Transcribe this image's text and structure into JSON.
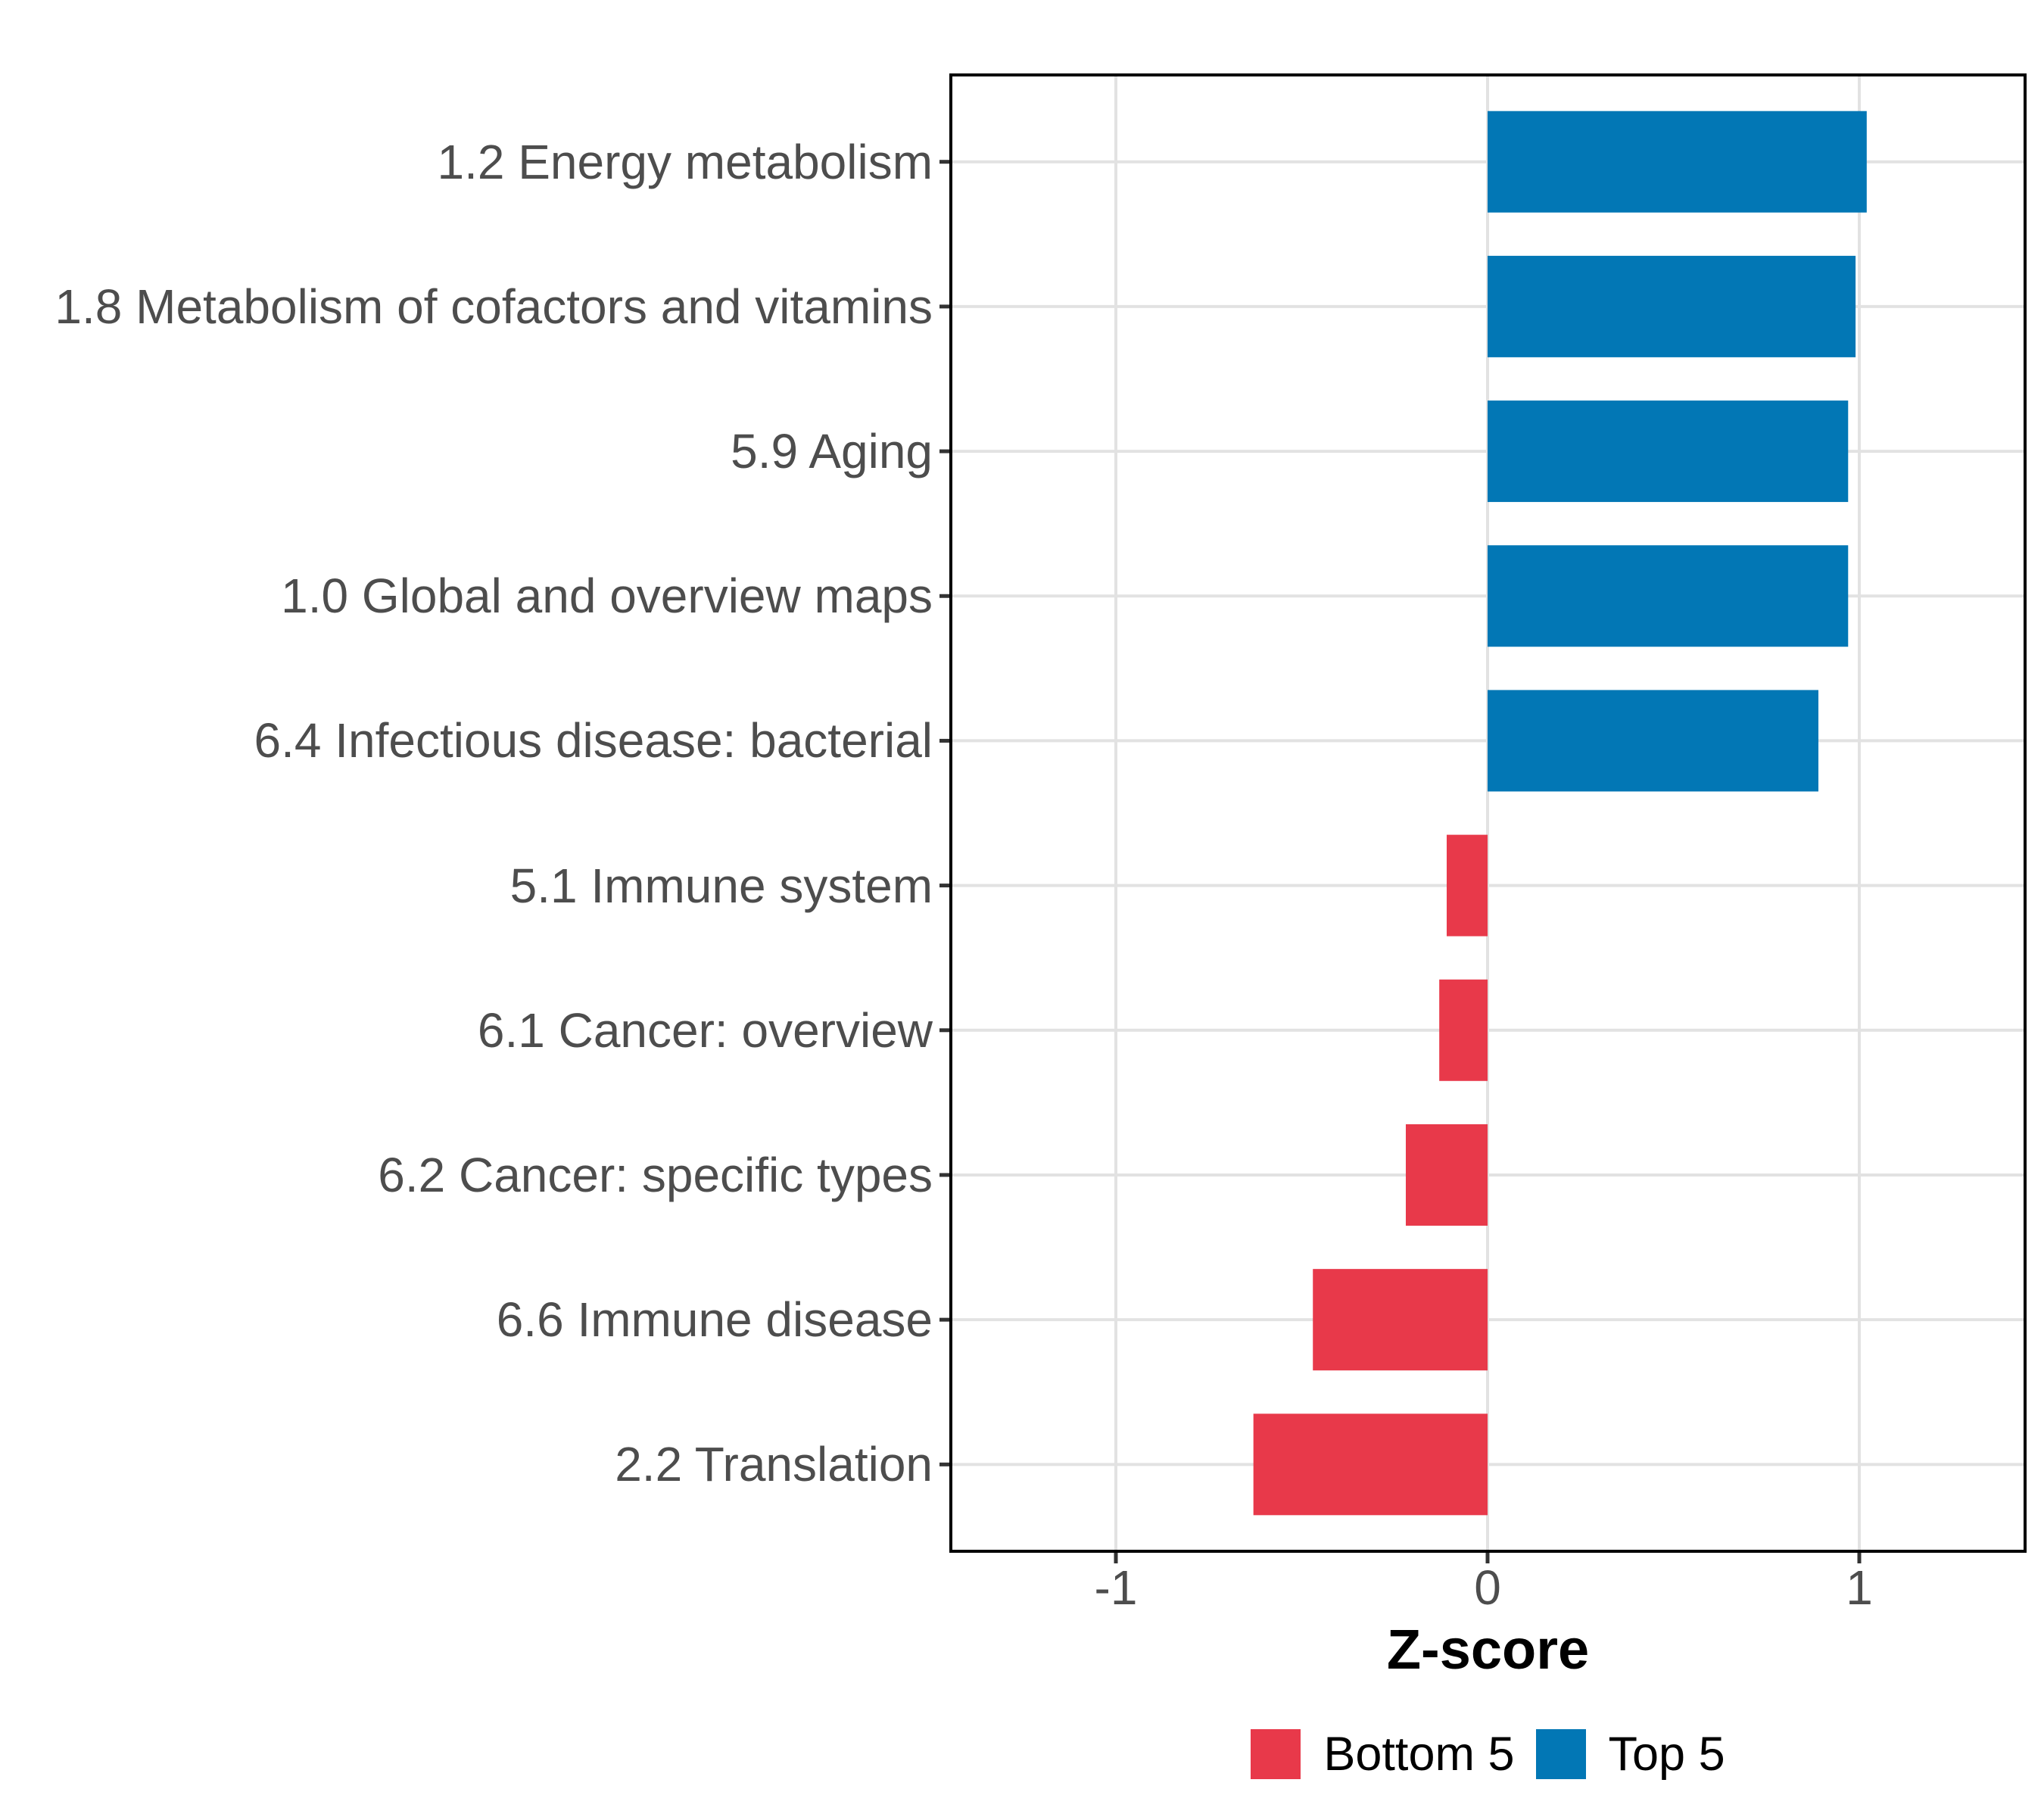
{
  "chart_data": {
    "type": "bar",
    "orientation": "horizontal",
    "title": "",
    "xlabel": "Z-score",
    "ylabel": "",
    "categories": [
      "1.2 Energy metabolism",
      "1.8 Metabolism of cofactors and vitamins",
      "5.9 Aging",
      "1.0 Global and overview maps",
      "6.4 Infectious disease: bacterial",
      "5.1 Immune system",
      "6.1 Cancer: overview",
      "6.2 Cancer: specific types",
      "6.6 Immune disease",
      "2.2 Translation"
    ],
    "series": [
      {
        "name": "Top 5",
        "color": "#0277B5",
        "members": [
          "1.2 Energy metabolism",
          "1.8 Metabolism of cofactors and vitamins",
          "5.9 Aging",
          "1.0 Global and overview maps",
          "6.4 Infectious disease: bacterial"
        ]
      },
      {
        "name": "Bottom 5",
        "color": "#E8394A",
        "members": [
          "5.1 Immune system",
          "6.1 Cancer: overview",
          "6.2 Cancer: specific types",
          "6.6 Immune disease",
          "2.2 Translation"
        ]
      }
    ],
    "values": [
      1.02,
      0.99,
      0.97,
      0.97,
      0.89,
      -0.11,
      -0.13,
      -0.22,
      -0.47,
      -0.63
    ],
    "groups": [
      "Top 5",
      "Top 5",
      "Top 5",
      "Top 5",
      "Top 5",
      "Bottom 5",
      "Bottom 5",
      "Bottom 5",
      "Bottom 5",
      "Bottom 5"
    ],
    "x_ticks": [
      "-1",
      "0",
      "1"
    ],
    "x_tick_values": [
      -1,
      0,
      1
    ],
    "xlim": [
      -1.44,
      1.44
    ],
    "grid": true,
    "legend_position": "bottom",
    "legend": [
      {
        "label": "Bottom 5",
        "color": "#E8394A"
      },
      {
        "label": "Top 5",
        "color": "#0277B5"
      }
    ]
  },
  "colors": {
    "bar_positive": "#0277B5",
    "bar_negative": "#E8394A",
    "gridline": "#E2E2E2",
    "panel_border": "#000000",
    "tick_mark": "#333333",
    "axis_text": "#4d4d4d",
    "axis_title": "#000000",
    "background": "#ffffff"
  }
}
